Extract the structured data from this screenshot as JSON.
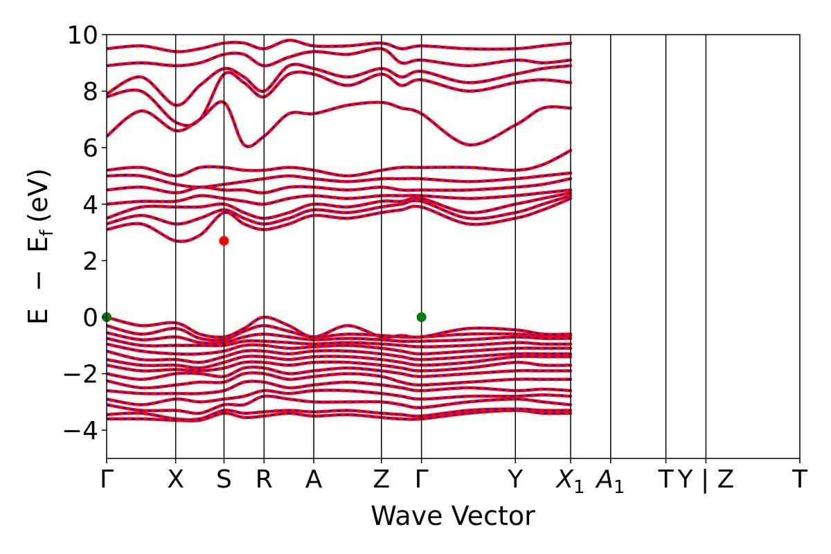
{
  "chart_data": {
    "type": "line",
    "xlabel": "Wave Vector",
    "ylabel_parts": [
      "E",
      "−",
      "E",
      "f",
      "(eV)"
    ],
    "ylim": [
      -5,
      10
    ],
    "yticks": [
      10,
      8,
      6,
      4,
      2,
      0,
      -2,
      -4
    ],
    "ytick_labels": [
      "10",
      "8",
      "6",
      "4",
      "2",
      "0",
      "−2",
      "−4"
    ],
    "grid": false,
    "kpath": [
      {
        "label": "Γ",
        "k": 0.0
      },
      {
        "label": "X",
        "k": 0.5
      },
      {
        "label": "S",
        "k": 0.85
      },
      {
        "label": "R",
        "k": 1.14
      },
      {
        "label": "A",
        "k": 1.5
      },
      {
        "label": "Z",
        "k": 1.99
      },
      {
        "label": "Γ",
        "k": 2.28
      },
      {
        "label": "Y",
        "k": 2.96
      },
      {
        "label": "X",
        "sub": "1",
        "k": 3.36
      },
      {
        "label": "A",
        "sub": "1",
        "k": 3.65
      },
      {
        "label": "T",
        "k": 4.05
      },
      {
        "label": "Y | Z",
        "k": 4.34
      },
      {
        "label": "T",
        "k": 5.02
      }
    ],
    "series_colors": {
      "spin_up": "#ff0000",
      "spin_down": "#0000ff"
    },
    "vbm_points": [
      {
        "k": 0.0,
        "E": 0.0
      },
      {
        "k": 2.28,
        "E": 0.0
      }
    ],
    "cbm_point": {
      "k": 0.85,
      "E": 2.7
    },
    "vbm_color": "#008000",
    "cbm_color": "#ff0000",
    "bands": [
      [
        -3.6,
        -3.6,
        -3.65,
        -3.65,
        -3.4,
        -3.55,
        -3.5,
        -3.4,
        -3.5,
        -3.45,
        -3.55,
        -3.6,
        -3.6,
        -3.4,
        -3.3,
        -3.4,
        -3.4
      ],
      [
        -3.45,
        -3.4,
        -3.6,
        -3.6,
        -3.3,
        -3.4,
        -3.35,
        -3.3,
        -3.35,
        -3.3,
        -3.4,
        -3.45,
        -3.5,
        -3.3,
        -3.25,
        -3.3,
        -3.3
      ],
      [
        -3.1,
        -3.3,
        -3.3,
        -3.4,
        -3.1,
        -3.1,
        -2.8,
        -2.9,
        -3.0,
        -3.0,
        -3.0,
        -3.1,
        -3.2,
        -3.0,
        -2.9,
        -3.0,
        -3.1
      ],
      [
        -2.9,
        -3.1,
        -2.9,
        -3.0,
        -2.9,
        -2.8,
        -2.6,
        -2.7,
        -2.6,
        -2.6,
        -2.7,
        -2.8,
        -2.9,
        -2.8,
        -2.8,
        -2.75,
        -2.8
      ],
      [
        -2.6,
        -2.7,
        -2.7,
        -2.7,
        -2.6,
        -2.3,
        -2.3,
        -2.5,
        -2.4,
        -2.3,
        -2.4,
        -2.5,
        -2.6,
        -2.5,
        -2.6,
        -2.55,
        -2.6
      ],
      [
        -2.25,
        -2.5,
        -2.4,
        -2.3,
        -2.3,
        -2.0,
        -2.0,
        -2.2,
        -2.1,
        -2.0,
        -2.1,
        -2.3,
        -2.4,
        -2.3,
        -2.2,
        -2.2,
        -2.2
      ],
      [
        -2.0,
        -2.2,
        -2.0,
        -2.0,
        -2.1,
        -1.8,
        -1.8,
        -2.0,
        -1.9,
        -1.8,
        -1.9,
        -2.0,
        -2.1,
        -2.0,
        -1.9,
        -1.9,
        -1.9
      ],
      [
        -1.7,
        -1.9,
        -1.85,
        -1.9,
        -1.8,
        -1.6,
        -1.6,
        -1.7,
        -1.6,
        -1.6,
        -1.7,
        -1.8,
        -1.9,
        -1.8,
        -1.6,
        -1.7,
        -1.7
      ],
      [
        -1.5,
        -1.7,
        -1.7,
        -1.8,
        -1.6,
        -1.4,
        -1.4,
        -1.5,
        -1.4,
        -1.4,
        -1.5,
        -1.6,
        -1.7,
        -1.6,
        -1.4,
        -1.4,
        -1.4
      ],
      [
        -1.2,
        -1.5,
        -1.5,
        -1.6,
        -1.4,
        -1.2,
        -1.2,
        -1.3,
        -1.2,
        -1.2,
        -1.3,
        -1.4,
        -1.5,
        -1.4,
        -1.3,
        -1.3,
        -1.3
      ],
      [
        -0.95,
        -1.2,
        -1.3,
        -1.3,
        -1.2,
        -1.0,
        -1.0,
        -1.1,
        -1.05,
        -1.0,
        -1.1,
        -1.2,
        -1.3,
        -1.2,
        -1.1,
        -1.1,
        -1.1
      ],
      [
        -0.75,
        -1.0,
        -1.0,
        -1.0,
        -1.0,
        -0.85,
        -0.85,
        -0.9,
        -0.95,
        -0.9,
        -0.95,
        -1.0,
        -1.05,
        -1.0,
        -0.9,
        -0.95,
        -0.95
      ],
      [
        -0.55,
        -0.8,
        -0.7,
        -0.9,
        -0.9,
        -0.7,
        -0.6,
        -0.7,
        -0.8,
        -0.75,
        -0.8,
        -0.85,
        -0.85,
        -0.8,
        -0.7,
        -0.75,
        -0.75
      ],
      [
        -0.3,
        -0.6,
        -0.4,
        -0.75,
        -0.8,
        -0.5,
        -0.3,
        -0.5,
        -0.7,
        -0.6,
        -0.65,
        -0.7,
        -0.7,
        -0.6,
        -0.6,
        -0.65,
        -0.65
      ],
      [
        0.0,
        -0.3,
        -0.2,
        -0.6,
        -0.7,
        -0.4,
        0.0,
        -0.3,
        -0.7,
        -0.3,
        -0.7,
        -0.65,
        -0.7,
        -0.4,
        -0.45,
        -0.6,
        -0.6
      ],
      [
        3.1,
        3.3,
        2.7,
        2.9,
        3.7,
        3.3,
        3.1,
        3.3,
        3.6,
        3.5,
        3.7,
        3.8,
        3.9,
        3.3,
        3.5,
        3.8,
        4.2
      ],
      [
        3.3,
        3.6,
        3.3,
        3.5,
        3.8,
        3.5,
        3.3,
        3.5,
        3.8,
        3.7,
        3.9,
        4.0,
        4.1,
        3.5,
        3.7,
        4.0,
        4.3
      ],
      [
        3.5,
        3.9,
        3.9,
        3.9,
        4.0,
        3.7,
        3.5,
        3.7,
        4.0,
        3.9,
        4.1,
        4.1,
        4.2,
        3.7,
        4.0,
        4.2,
        4.4
      ],
      [
        4.0,
        4.1,
        4.1,
        4.3,
        4.2,
        4.1,
        4.0,
        4.2,
        4.3,
        4.2,
        4.3,
        4.3,
        4.3,
        4.2,
        4.3,
        4.4,
        4.5
      ],
      [
        4.5,
        4.6,
        4.4,
        4.6,
        4.5,
        4.5,
        4.4,
        4.6,
        4.6,
        4.5,
        4.6,
        4.5,
        4.5,
        4.5,
        4.6,
        4.7,
        4.9
      ],
      [
        5.0,
        5.0,
        4.7,
        4.6,
        4.7,
        4.8,
        4.9,
        5.0,
        4.9,
        4.8,
        4.9,
        4.9,
        4.9,
        4.8,
        4.9,
        5.0,
        5.1
      ],
      [
        5.2,
        5.3,
        5.0,
        5.3,
        5.3,
        5.2,
        5.2,
        5.3,
        5.2,
        5.0,
        5.2,
        5.3,
        5.3,
        5.3,
        5.2,
        5.4,
        5.9
      ],
      [
        6.4,
        7.3,
        6.6,
        7.0,
        7.6,
        6.1,
        6.4,
        7.2,
        7.2,
        7.5,
        7.6,
        7.4,
        7.2,
        6.1,
        6.8,
        7.4,
        7.4
      ],
      [
        7.8,
        8.0,
        6.9,
        7.0,
        8.6,
        8.3,
        7.8,
        8.6,
        8.6,
        8.2,
        8.6,
        8.2,
        8.4,
        8.0,
        8.3,
        8.4,
        8.3
      ],
      [
        7.9,
        8.5,
        7.5,
        8.2,
        8.8,
        8.5,
        8.0,
        8.9,
        8.8,
        8.5,
        8.8,
        8.5,
        8.7,
        8.3,
        8.6,
        8.8,
        8.9
      ],
      [
        8.9,
        9.0,
        8.9,
        9.0,
        9.3,
        9.3,
        8.9,
        9.2,
        9.4,
        9.3,
        9.5,
        9.0,
        9.1,
        8.9,
        9.1,
        9.0,
        9.1
      ],
      [
        9.5,
        9.6,
        9.4,
        9.5,
        9.7,
        9.7,
        9.5,
        9.8,
        9.6,
        9.6,
        9.7,
        9.5,
        9.6,
        9.5,
        9.5,
        9.6,
        9.7
      ]
    ]
  }
}
